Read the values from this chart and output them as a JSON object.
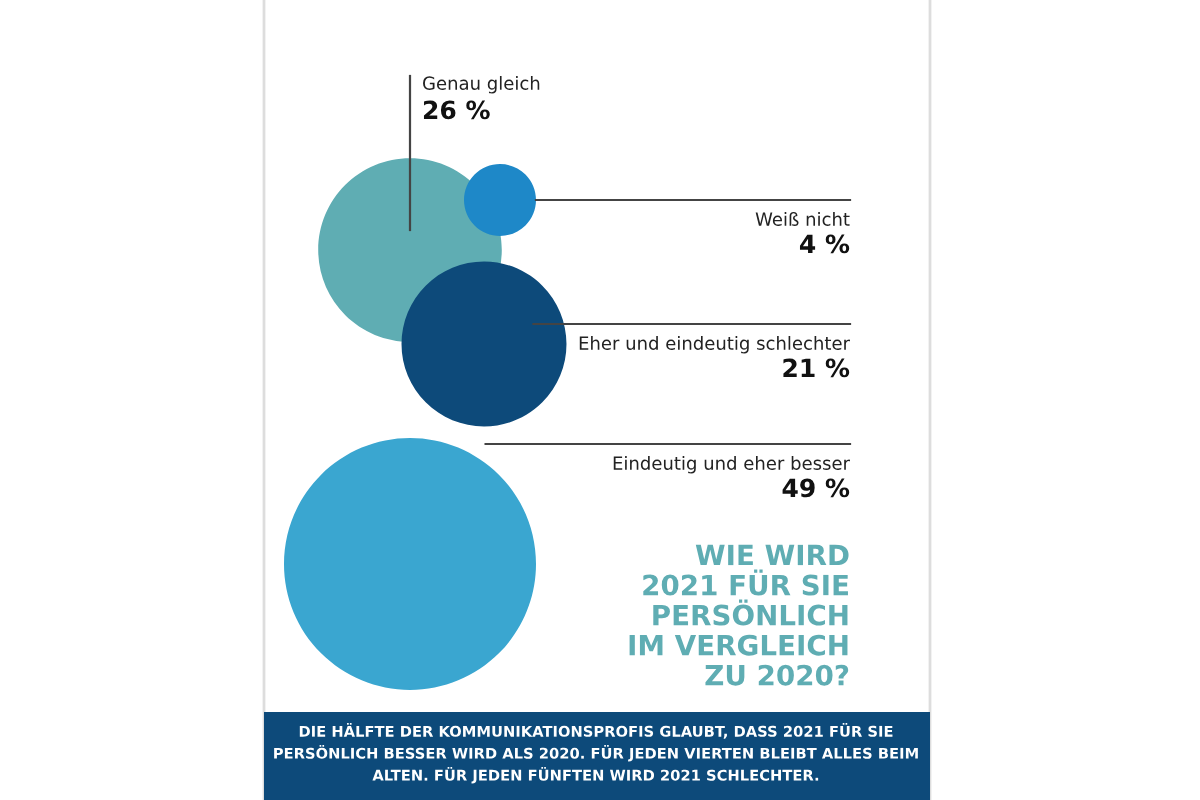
{
  "chart_data": {
    "type": "other",
    "title": "WIE WIRD 2021 FÜR SIE PERSÖNLICH IM VERGLEICH ZU 2020?",
    "categories": [
      "Genau gleich",
      "Weiß nicht",
      "Eher und eindeutig schlechter",
      "Eindeutig und eher besser"
    ],
    "values": [
      26,
      4,
      21,
      49
    ],
    "value_labels": [
      "26 %",
      "4 %",
      "21 %",
      "49 %"
    ],
    "colors": [
      "#5fadb3",
      "#1e88c8",
      "#0d4a7a",
      "#3aa6d0"
    ],
    "annotations": [
      "DIE HÄLFTE DER KOMMUNIKATIONSPROFIS GLAUBT, DASS 2021 FÜR SIE PERSÖNLICH BESSER WIRD ALS 2020. FÜR JEDEN VIERTEN BLEIBT ALLES BEIM ALTEN. FÜR JEDEN FÜNFTEN WIRD 2021 SCHLECHTER."
    ]
  }
}
